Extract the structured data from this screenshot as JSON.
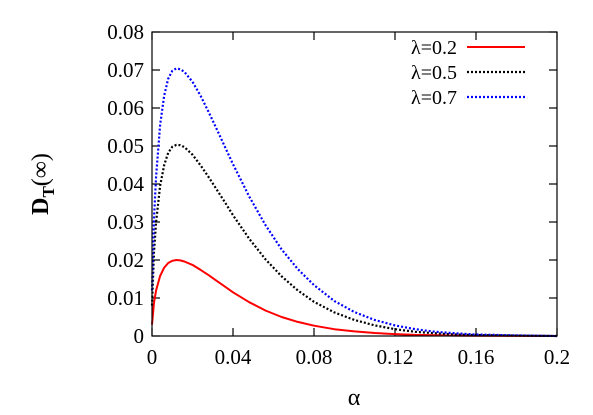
{
  "chart_data": {
    "type": "line",
    "xlabel": "α",
    "ylabel_main": "D",
    "ylabel_sub": "T",
    "ylabel_rest": "(∞)",
    "xlim": [
      0,
      0.2
    ],
    "ylim": [
      0,
      0.08
    ],
    "xticks": [
      "0",
      "0.04",
      "0.08",
      "0.12",
      "0.16",
      "0.2"
    ],
    "xtick_values": [
      0,
      0.04,
      0.08,
      0.12,
      0.16,
      0.2
    ],
    "yticks": [
      "0",
      "0.01",
      "0.02",
      "0.03",
      "0.04",
      "0.05",
      "0.06",
      "0.07",
      "0.08"
    ],
    "ytick_values": [
      0,
      0.01,
      0.02,
      0.03,
      0.04,
      0.05,
      0.06,
      0.07,
      0.08
    ],
    "grid": false,
    "legend_position": "top-right",
    "series": [
      {
        "name": "λ=0.2",
        "color": "#ff0000",
        "style": "solid",
        "x": [
          0,
          0.001,
          0.002,
          0.004,
          0.006,
          0.008,
          0.01,
          0.012,
          0.014,
          0.016,
          0.02,
          0.024,
          0.028,
          0.032,
          0.036,
          0.04,
          0.048,
          0.056,
          0.064,
          0.072,
          0.08,
          0.09,
          0.1,
          0.11,
          0.12,
          0.13,
          0.14,
          0.15,
          0.16,
          0.18,
          0.2
        ],
        "values": [
          0.003,
          0.0088,
          0.012,
          0.0158,
          0.018,
          0.0192,
          0.0198,
          0.02,
          0.0199,
          0.0196,
          0.0187,
          0.0174,
          0.016,
          0.0145,
          0.013,
          0.0115,
          0.0089,
          0.0067,
          0.005,
          0.0037,
          0.0027,
          0.0018,
          0.0012,
          0.0008,
          0.0005,
          0.0003,
          0.0002,
          0.0001,
          7e-05,
          2e-05,
          0.0
        ]
      },
      {
        "name": "λ=0.5",
        "color": "#000000",
        "style": "dotted",
        "x": [
          0,
          0.001,
          0.002,
          0.004,
          0.006,
          0.008,
          0.01,
          0.012,
          0.014,
          0.016,
          0.02,
          0.024,
          0.028,
          0.032,
          0.036,
          0.04,
          0.048,
          0.056,
          0.064,
          0.072,
          0.08,
          0.09,
          0.1,
          0.11,
          0.12,
          0.13,
          0.14,
          0.15,
          0.16,
          0.18,
          0.2
        ],
        "values": [
          0.008,
          0.022,
          0.03,
          0.0395,
          0.045,
          0.0482,
          0.0498,
          0.0503,
          0.0502,
          0.0497,
          0.0477,
          0.0449,
          0.0418,
          0.0385,
          0.0352,
          0.0318,
          0.0256,
          0.0202,
          0.0157,
          0.012,
          0.009,
          0.0062,
          0.0042,
          0.0028,
          0.0018,
          0.0011,
          0.0007,
          0.0004,
          0.00025,
          0.0001,
          0.0
        ]
      },
      {
        "name": "λ=0.7",
        "color": "#0000ff",
        "style": "dotted",
        "x": [
          0,
          0.001,
          0.002,
          0.004,
          0.006,
          0.008,
          0.01,
          0.012,
          0.014,
          0.016,
          0.02,
          0.024,
          0.028,
          0.032,
          0.036,
          0.04,
          0.048,
          0.056,
          0.064,
          0.072,
          0.08,
          0.09,
          0.1,
          0.11,
          0.12,
          0.13,
          0.14,
          0.15,
          0.16,
          0.18,
          0.2
        ],
        "values": [
          0.012,
          0.031,
          0.042,
          0.0555,
          0.0633,
          0.0677,
          0.0698,
          0.0704,
          0.0702,
          0.0695,
          0.0669,
          0.0632,
          0.0589,
          0.0544,
          0.0498,
          0.0452,
          0.0367,
          0.0292,
          0.0228,
          0.0176,
          0.0134,
          0.0092,
          0.0063,
          0.0042,
          0.0028,
          0.0018,
          0.0011,
          0.0007,
          0.0004,
          0.00015,
          0.0
        ]
      }
    ]
  }
}
